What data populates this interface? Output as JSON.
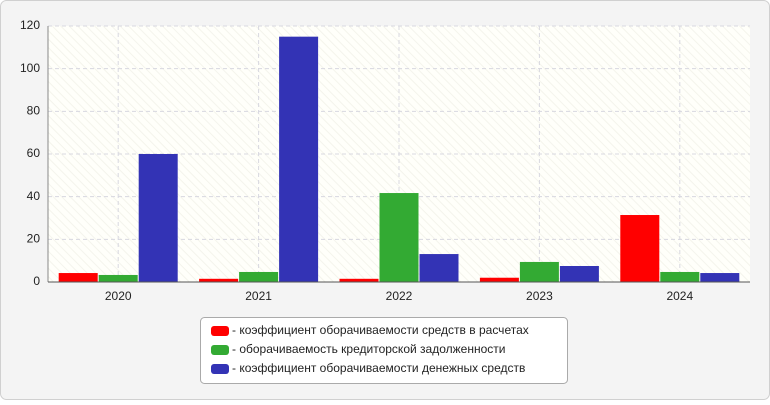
{
  "chart_data": {
    "type": "bar",
    "categories": [
      "2020",
      "2021",
      "2022",
      "2023",
      "2024"
    ],
    "series": [
      {
        "name": "- коэффициент оборачиваемости средств в расчетах",
        "color": "#ff0000",
        "values": [
          4.2,
          1.5,
          1.5,
          2,
          31.4
        ]
      },
      {
        "name": "- оборачиваемость кредиторской задолженности",
        "color": "#33aa33",
        "values": [
          3.3,
          4.7,
          41.7,
          9.4,
          4.7
        ]
      },
      {
        "name": "- коэффициент оборачиваемости денежных средств",
        "color": "#3333b5",
        "values": [
          60,
          115,
          13.1,
          7.5,
          4.2
        ]
      }
    ],
    "ylim": [
      0,
      120
    ],
    "yticks": [
      0,
      20,
      40,
      60,
      80,
      100,
      120
    ],
    "grid": true
  }
}
